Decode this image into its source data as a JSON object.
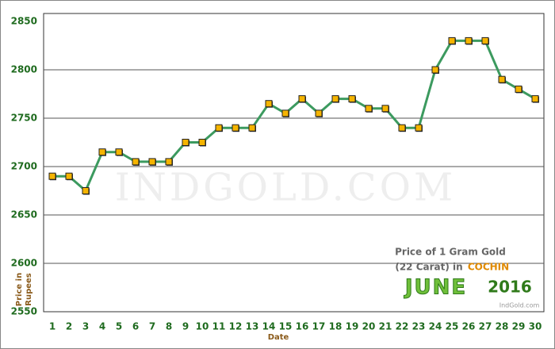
{
  "chart_data": {
    "type": "line",
    "categories": [
      "1",
      "2",
      "3",
      "4",
      "5",
      "6",
      "7",
      "8",
      "9",
      "10",
      "11",
      "12",
      "13",
      "14",
      "15",
      "16",
      "17",
      "18",
      "19",
      "20",
      "21",
      "22",
      "23",
      "24",
      "25",
      "26",
      "27",
      "28",
      "29",
      "30"
    ],
    "values": [
      2690,
      2690,
      2675,
      2715,
      2715,
      2705,
      2705,
      2705,
      2725,
      2725,
      2740,
      2740,
      2740,
      2765,
      2755,
      2770,
      2755,
      2770,
      2770,
      2760,
      2760,
      2740,
      2740,
      2800,
      2830,
      2830,
      2830,
      2790,
      2780,
      2770
    ],
    "color": "#3c9a5f",
    "marker_color": "#f5b400",
    "ylim": [
      2550,
      2850
    ],
    "yticks": [
      2550,
      2600,
      2650,
      2700,
      2750,
      2800,
      2850
    ],
    "grid": true,
    "xlabel": "Date",
    "ylabel": [
      "Price in",
      "Rupees"
    ],
    "watermark": "INDGOLD.COM",
    "caption": {
      "line1": "Price of 1 Gram Gold",
      "line2": "(22 Carat) in",
      "city": "COCHIN",
      "month": "JUNE",
      "year": "2016",
      "source": "IndGold.com"
    }
  }
}
